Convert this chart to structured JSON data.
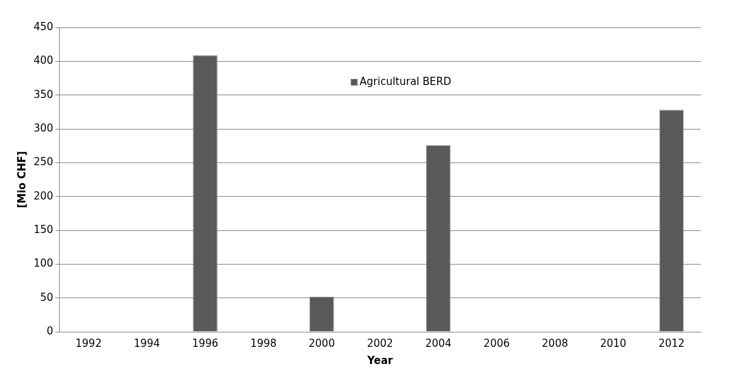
{
  "chart_data": {
    "type": "bar",
    "xlabel": "Year",
    "ylabel": "[Mio CHF]",
    "categories": [
      "1992",
      "1994",
      "1996",
      "1998",
      "2000",
      "2002",
      "2004",
      "2006",
      "2008",
      "2010",
      "2012"
    ],
    "series": [
      {
        "name": "Agricultural BERD",
        "color": "#595959",
        "values": [
          null,
          null,
          409,
          null,
          52,
          null,
          276,
          null,
          null,
          null,
          328
        ]
      }
    ],
    "ylim": [
      0,
      450
    ],
    "yticks": [
      0,
      50,
      100,
      150,
      200,
      250,
      300,
      350,
      400,
      450
    ],
    "grid": "y",
    "legend": "top"
  }
}
